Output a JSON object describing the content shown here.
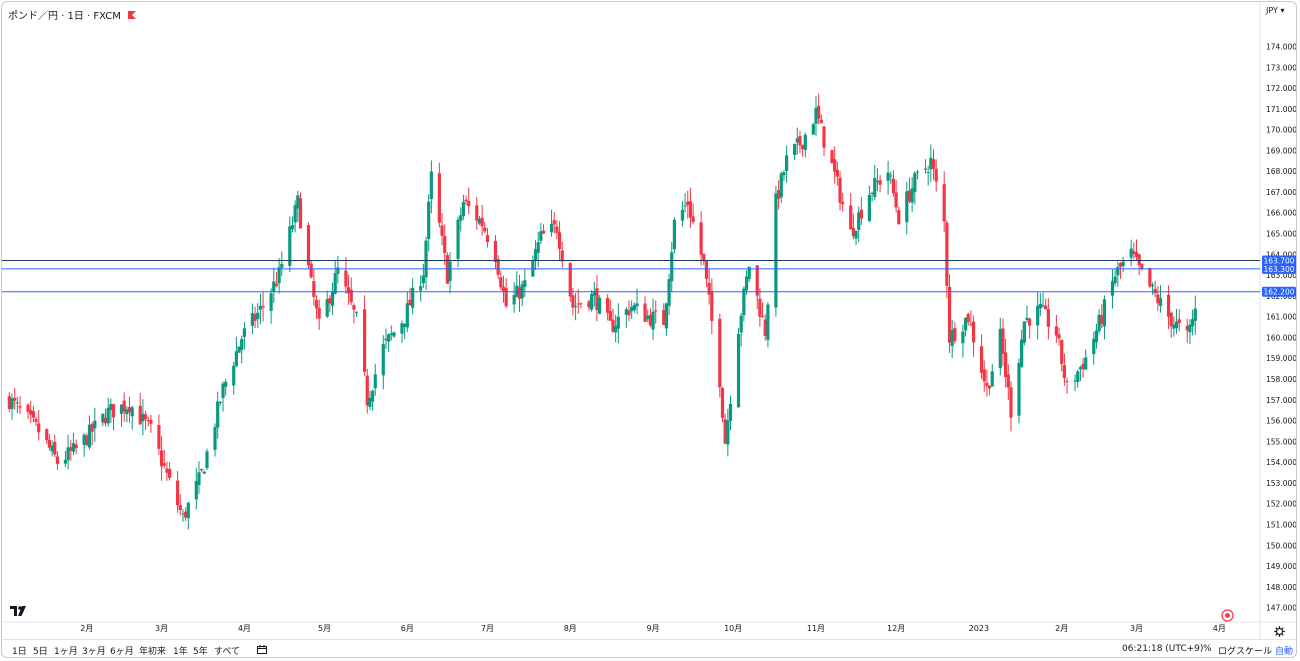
{
  "header": {
    "symbol_title": "ポンド／円 · 1日 · FXCM",
    "currency_unit": "JPY ▾"
  },
  "chart_data": {
    "type": "candlestick",
    "title": "ポンド／円 · 1日 · FXCM",
    "ylim": [
      146.5,
      174.6
    ],
    "y_ticks": [
      "147.000",
      "148.000",
      "149.000",
      "150.000",
      "151.000",
      "152.000",
      "153.000",
      "154.000",
      "155.000",
      "156.000",
      "157.000",
      "158.000",
      "159.000",
      "160.000",
      "161.000",
      "162.000",
      "163.000",
      "164.000",
      "165.000",
      "166.000",
      "167.000",
      "168.000",
      "169.000",
      "170.000",
      "171.000",
      "172.000",
      "173.000",
      "174.000"
    ],
    "x_ticks": [
      "2月",
      "3月",
      "4月",
      "5月",
      "6月",
      "7月",
      "8月",
      "9月",
      "10月",
      "11月",
      "12月",
      "2023",
      "2月",
      "3月",
      "4月"
    ],
    "up_color": "#089981",
    "down_color": "#f23645",
    "horizontal_lines": [
      {
        "label": "163.700",
        "value": 163.7,
        "color": "#1e3a5f"
      },
      {
        "label": "163.300",
        "value": 163.3,
        "color": "#2962ff"
      },
      {
        "label": "162.200",
        "value": 162.2,
        "color": "#2962ff"
      }
    ],
    "close_path": [
      [
        "2022-01-03",
        157.0
      ],
      [
        "2022-01-14",
        155.5
      ],
      [
        "2022-01-21",
        154.0
      ],
      [
        "2022-01-28",
        154.6
      ],
      [
        "2022-02-09",
        156.4
      ],
      [
        "2022-02-17",
        156.8
      ],
      [
        "2022-02-25",
        155.5
      ],
      [
        "2022-03-04",
        153.0
      ],
      [
        "2022-03-09",
        151.3
      ],
      [
        "2022-03-16",
        153.4
      ],
      [
        "2022-03-24",
        157.5
      ],
      [
        "2022-03-31",
        160.0
      ],
      [
        "2022-04-08",
        161.5
      ],
      [
        "2022-04-14",
        163.0
      ],
      [
        "2022-04-21",
        166.5
      ],
      [
        "2022-04-26",
        162.5
      ],
      [
        "2022-04-29",
        160.5
      ],
      [
        "2022-05-06",
        163.2
      ],
      [
        "2022-05-13",
        160.8
      ],
      [
        "2022-05-17",
        157.0
      ],
      [
        "2022-05-23",
        159.5
      ],
      [
        "2022-05-31",
        161.0
      ],
      [
        "2022-06-07",
        163.2
      ],
      [
        "2022-06-10",
        167.7
      ],
      [
        "2022-06-16",
        163.0
      ],
      [
        "2022-06-22",
        166.5
      ],
      [
        "2022-06-29",
        165.5
      ],
      [
        "2022-07-04",
        164.0
      ],
      [
        "2022-07-08",
        161.5
      ],
      [
        "2022-07-15",
        162.5
      ],
      [
        "2022-07-21",
        164.8
      ],
      [
        "2022-07-27",
        165.3
      ],
      [
        "2022-08-02",
        161.5
      ],
      [
        "2022-08-10",
        162.0
      ],
      [
        "2022-08-16",
        160.5
      ],
      [
        "2022-08-24",
        161.5
      ],
      [
        "2022-08-30",
        161.0
      ],
      [
        "2022-09-05",
        160.8
      ],
      [
        "2022-09-09",
        165.5
      ],
      [
        "2022-09-14",
        166.5
      ],
      [
        "2022-09-20",
        163.5
      ],
      [
        "2022-09-26",
        158.0
      ],
      [
        "2022-09-28",
        155.0
      ],
      [
        "2022-10-03",
        160.5
      ],
      [
        "2022-10-07",
        163.5
      ],
      [
        "2022-10-13",
        160.3
      ],
      [
        "2022-10-17",
        166.5
      ],
      [
        "2022-10-21",
        168.5
      ],
      [
        "2022-10-27",
        169.5
      ],
      [
        "2022-11-01",
        170.8
      ],
      [
        "2022-11-08",
        167.8
      ],
      [
        "2022-11-14",
        165.0
      ],
      [
        "2022-11-21",
        167.0
      ],
      [
        "2022-11-28",
        168.0
      ],
      [
        "2022-12-02",
        165.8
      ],
      [
        "2022-12-08",
        167.5
      ],
      [
        "2022-12-14",
        168.5
      ],
      [
        "2022-12-19",
        165.5
      ],
      [
        "2022-12-21",
        160.0
      ],
      [
        "2022-12-28",
        161.0
      ],
      [
        "2023-01-04",
        157.5
      ],
      [
        "2023-01-09",
        160.0
      ],
      [
        "2023-01-13",
        156.5
      ],
      [
        "2023-01-18",
        160.8
      ],
      [
        "2023-01-24",
        161.3
      ],
      [
        "2023-01-30",
        160.2
      ],
      [
        "2023-02-03",
        157.5
      ],
      [
        "2023-02-10",
        159.0
      ],
      [
        "2023-02-16",
        161.0
      ],
      [
        "2023-02-21",
        163.0
      ],
      [
        "2023-02-27",
        164.0
      ],
      [
        "2023-03-03",
        163.0
      ],
      [
        "2023-03-08",
        162.0
      ],
      [
        "2023-03-13",
        161.0
      ],
      [
        "2023-03-20",
        160.0
      ],
      [
        "2023-03-23",
        161.3
      ]
    ]
  },
  "bottom_bar": {
    "ranges": [
      "1日",
      "5日",
      "1ヶ月",
      "3ヶ月",
      "6ヶ月",
      "年初来",
      "1年",
      "5年",
      "すべて"
    ],
    "timezone": "06:21:18 (UTC+9)",
    "percent": "%",
    "log_scale": "ログスケール",
    "auto": "自動"
  },
  "icons": {
    "calendar": "calendar-range-icon",
    "settings": "gear-icon",
    "logo": "tradingview-logo",
    "replay": "replay-icon"
  }
}
